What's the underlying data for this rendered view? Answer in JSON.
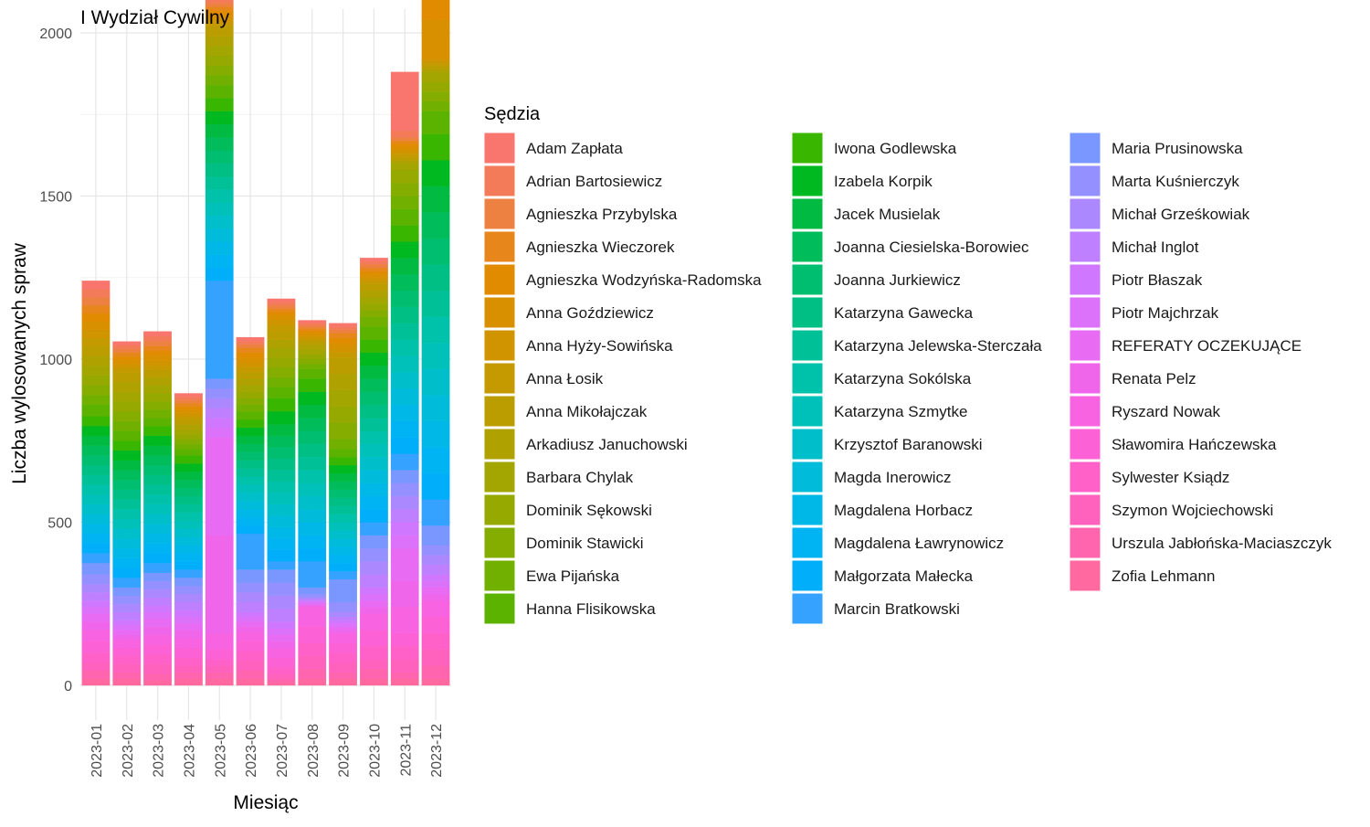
{
  "chart_data": {
    "type": "bar",
    "stacked": true,
    "title": "I Wydział Cywilny",
    "xlabel": "Miesiąc",
    "ylabel": "Liczba wylosowanych spraw",
    "ylim": [
      -150,
      2080
    ],
    "yticks": [
      0,
      500,
      1000,
      1500,
      2000
    ],
    "grid": true,
    "legend_position": "right",
    "legend_title": "Sędzia",
    "categories": [
      "2023-01",
      "2023-02",
      "2023-03",
      "2023-04",
      "2023-05",
      "2023-06",
      "2023-07",
      "2023-08",
      "2023-09",
      "2023-10",
      "2023-11",
      "2023-12"
    ],
    "series": [
      {
        "name": "Adam Zapłata",
        "color": "#F8766D",
        "values": [
          25,
          12,
          15,
          10,
          15,
          12,
          10,
          8,
          10,
          10,
          180,
          10
        ]
      },
      {
        "name": "Adrian Bartosiewicz",
        "color": "#F37B59",
        "values": [
          25,
          10,
          15,
          10,
          12,
          10,
          10,
          8,
          10,
          10,
          20,
          15
        ]
      },
      {
        "name": "Agnieszka Przybylska",
        "color": "#ED8141",
        "values": [
          25,
          12,
          15,
          10,
          12,
          10,
          10,
          8,
          10,
          10,
          10,
          15
        ]
      },
      {
        "name": "Agnieszka Wieczorek",
        "color": "#E7861B",
        "values": [
          25,
          12,
          15,
          10,
          12,
          15,
          10,
          8,
          15,
          10,
          10,
          15
        ]
      },
      {
        "name": "Agnieszka Wodzyńska-Radomska",
        "color": "#E08B00",
        "values": [
          25,
          12,
          15,
          10,
          12,
          15,
          10,
          8,
          15,
          10,
          10,
          80
        ]
      },
      {
        "name": "Anna Goździewicz",
        "color": "#D89000",
        "values": [
          25,
          12,
          15,
          10,
          12,
          15,
          15,
          8,
          15,
          10,
          10,
          120
        ]
      },
      {
        "name": "Anna Hyży-Sowińska",
        "color": "#CF9400",
        "values": [
          25,
          12,
          15,
          10,
          12,
          15,
          15,
          8,
          15,
          10,
          10,
          10
        ]
      },
      {
        "name": "Anna Łosik",
        "color": "#C59900",
        "values": [
          25,
          12,
          15,
          10,
          12,
          15,
          20,
          8,
          15,
          10,
          10,
          10
        ]
      },
      {
        "name": "Anna Mikołajczak",
        "color": "#BB9D00",
        "values": [
          30,
          30,
          20,
          15,
          30,
          20,
          25,
          10,
          50,
          20,
          10,
          10
        ]
      },
      {
        "name": "Arkadiusz Januchowski",
        "color": "#AFA100",
        "values": [
          30,
          30,
          25,
          15,
          30,
          20,
          25,
          15,
          50,
          20,
          10,
          10
        ]
      },
      {
        "name": "Barbara Chylak",
        "color": "#A3A500",
        "values": [
          30,
          30,
          25,
          15,
          30,
          20,
          30,
          15,
          50,
          20,
          20,
          30
        ]
      },
      {
        "name": "Dominik Sękowski",
        "color": "#95A900",
        "values": [
          30,
          30,
          25,
          15,
          30,
          20,
          30,
          15,
          50,
          20,
          40,
          30
        ]
      },
      {
        "name": "Dominik Stawicki",
        "color": "#85AD00",
        "values": [
          30,
          30,
          25,
          15,
          30,
          20,
          30,
          15,
          50,
          20,
          40,
          30
        ]
      },
      {
        "name": "Ewa Pijańska",
        "color": "#72B000",
        "values": [
          30,
          30,
          25,
          15,
          30,
          20,
          30,
          15,
          30,
          30,
          40,
          30
        ]
      },
      {
        "name": "Hanna Flisikowska",
        "color": "#5BB300",
        "values": [
          35,
          30,
          25,
          20,
          40,
          25,
          35,
          30,
          25,
          40,
          50,
          70
        ]
      },
      {
        "name": "Iwona Godlewska",
        "color": "#39B600",
        "values": [
          30,
          30,
          30,
          25,
          40,
          25,
          40,
          40,
          25,
          40,
          50,
          80
        ]
      },
      {
        "name": "Izabela Korpik",
        "color": "#00B81F",
        "values": [
          30,
          30,
          30,
          25,
          40,
          25,
          40,
          40,
          25,
          40,
          50,
          80
        ]
      },
      {
        "name": "Jacek Musielak",
        "color": "#00BA42",
        "values": [
          30,
          30,
          30,
          25,
          40,
          25,
          35,
          40,
          25,
          40,
          50,
          80
        ]
      },
      {
        "name": "Joanna Ciesielska-Borowiec",
        "color": "#00BC5A",
        "values": [
          30,
          30,
          30,
          25,
          40,
          25,
          35,
          40,
          25,
          40,
          50,
          80
        ]
      },
      {
        "name": "Joanna Jurkiewicz",
        "color": "#00BE70",
        "values": [
          30,
          30,
          30,
          25,
          40,
          25,
          35,
          40,
          25,
          40,
          50,
          80
        ]
      },
      {
        "name": "Katarzyna Gawecka",
        "color": "#00BF84",
        "values": [
          30,
          30,
          30,
          25,
          40,
          25,
          35,
          40,
          25,
          40,
          50,
          80
        ]
      },
      {
        "name": "Katarzyna Jelewska-Sterczała",
        "color": "#00C097",
        "values": [
          30,
          30,
          30,
          25,
          40,
          25,
          35,
          40,
          25,
          40,
          50,
          80
        ]
      },
      {
        "name": "Katarzyna Sokólska",
        "color": "#00C1A9",
        "values": [
          30,
          30,
          30,
          25,
          40,
          25,
          35,
          40,
          25,
          40,
          50,
          80
        ]
      },
      {
        "name": "Katarzyna Szmytke",
        "color": "#00C0BA",
        "values": [
          30,
          30,
          30,
          25,
          40,
          25,
          35,
          40,
          25,
          40,
          50,
          80
        ]
      },
      {
        "name": "Krzysztof Baranowski",
        "color": "#00BECA",
        "values": [
          30,
          30,
          30,
          25,
          40,
          25,
          35,
          40,
          25,
          40,
          50,
          80
        ]
      },
      {
        "name": "Magda Inerowicz",
        "color": "#00BBDA",
        "values": [
          30,
          30,
          30,
          25,
          40,
          25,
          35,
          40,
          25,
          40,
          50,
          80
        ]
      },
      {
        "name": "Magdalena Horbacz",
        "color": "#00B8E7",
        "values": [
          30,
          30,
          30,
          25,
          40,
          25,
          35,
          40,
          25,
          40,
          50,
          80
        ]
      },
      {
        "name": "Magdalena Ławrynowicz",
        "color": "#00B4F3",
        "values": [
          30,
          30,
          30,
          25,
          40,
          25,
          35,
          40,
          25,
          40,
          50,
          80
        ]
      },
      {
        "name": "Małgorzata Małecka",
        "color": "#00AEFA",
        "values": [
          30,
          30,
          30,
          25,
          40,
          25,
          35,
          40,
          25,
          40,
          50,
          80
        ]
      },
      {
        "name": "Marcin Bratkowski",
        "color": "#35A2FF",
        "values": [
          30,
          30,
          30,
          25,
          300,
          110,
          25,
          80,
          25,
          40,
          50,
          80
        ]
      },
      {
        "name": "Maria Prusinowska",
        "color": "#7997FF",
        "values": [
          35,
          25,
          25,
          25,
          30,
          40,
          40,
          20,
          70,
          40,
          40,
          60
        ]
      },
      {
        "name": "Marta Kuśnierczyk",
        "color": "#9590FF",
        "values": [
          30,
          25,
          25,
          25,
          30,
          30,
          40,
          10,
          30,
          40,
          40,
          30
        ]
      },
      {
        "name": "Michał Grześkowiak",
        "color": "#AC88FF",
        "values": [
          25,
          25,
          25,
          25,
          30,
          30,
          40,
          5,
          15,
          40,
          40,
          30
        ]
      },
      {
        "name": "Michał Inglot",
        "color": "#BF80FF",
        "values": [
          25,
          25,
          25,
          25,
          30,
          30,
          40,
          5,
          10,
          40,
          40,
          30
        ]
      },
      {
        "name": "Piotr Błaszak",
        "color": "#CF78FF",
        "values": [
          20,
          15,
          20,
          20,
          30,
          15,
          20,
          5,
          10,
          20,
          40,
          20
        ]
      },
      {
        "name": "Piotr Majchrzak",
        "color": "#DC71FA",
        "values": [
          20,
          15,
          20,
          20,
          30,
          15,
          20,
          5,
          10,
          20,
          40,
          20
        ]
      },
      {
        "name": "REFERATY OCZEKUJĄCE",
        "color": "#E76BF3",
        "values": [
          25,
          15,
          25,
          20,
          300,
          15,
          20,
          5,
          10,
          20,
          100,
          20
        ]
      },
      {
        "name": "Renata Pelz",
        "color": "#F066EA",
        "values": [
          25,
          15,
          25,
          25,
          300,
          15,
          20,
          5,
          10,
          20,
          80,
          20
        ]
      },
      {
        "name": "Ryszard Nowak",
        "color": "#F763E0",
        "values": [
          35,
          25,
          30,
          30,
          50,
          30,
          30,
          60,
          30,
          50,
          80,
          50
        ]
      },
      {
        "name": "Sławomira Hańczewska",
        "color": "#FC61D5",
        "values": [
          35,
          25,
          30,
          30,
          30,
          30,
          30,
          50,
          30,
          50,
          40,
          50
        ]
      },
      {
        "name": "Sylwester Ksiądz",
        "color": "#FF61C9",
        "values": [
          30,
          25,
          30,
          25,
          20,
          30,
          20,
          40,
          30,
          40,
          40,
          50
        ]
      },
      {
        "name": "Szymon Wojciechowski",
        "color": "#FF62BC",
        "values": [
          25,
          25,
          30,
          20,
          20,
          30,
          15,
          40,
          30,
          30,
          40,
          50
        ]
      },
      {
        "name": "Urszula Jabłońska-Maciaszczyk",
        "color": "#FF65AE",
        "values": [
          25,
          20,
          20,
          20,
          20,
          25,
          10,
          30,
          20,
          30,
          20,
          40
        ]
      },
      {
        "name": "Zofia Lehmann",
        "color": "#FF699F",
        "values": [
          20,
          20,
          15,
          20,
          20,
          20,
          10,
          20,
          20,
          20,
          20,
          20
        ]
      }
    ]
  }
}
